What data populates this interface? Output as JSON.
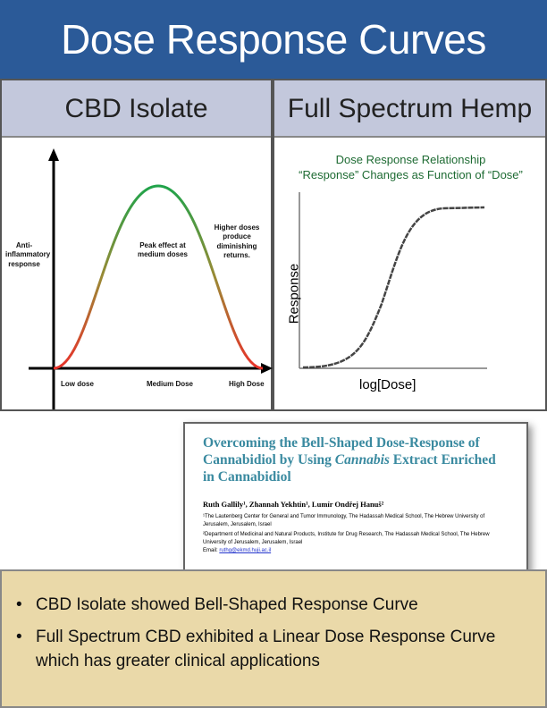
{
  "title": "Dose Response Curves",
  "left_panel": {
    "heading": "CBD Isolate",
    "chart_data": {
      "type": "line",
      "ylabel": "Anti-inflammatory response",
      "categories": [
        "Low dose",
        "Medium Dose",
        "High Dose"
      ],
      "annotations": [
        "Peak effect at medium doses",
        "Higher doses produce diminishing returns."
      ],
      "shape": "bell",
      "colors": {
        "low": "#e8322a",
        "peak": "#1fa34a"
      }
    }
  },
  "right_panel": {
    "heading": "Full Spectrum Hemp",
    "chart_data": {
      "type": "line",
      "title": "Dose Response Relationship",
      "subtitle": "“Response” Changes as Function of “Dose”",
      "xlabel": "log[Dose]",
      "ylabel": "Response",
      "shape": "sigmoid"
    }
  },
  "paper": {
    "title_parts": [
      "Overcoming the Bell-Shaped Dose-Response of Cannabidiol by Using ",
      "Cannabis",
      " Extract Enriched in Cannabidiol"
    ],
    "authors": "Ruth Gallily¹, Zhannah Yekhtin¹, Lumír Ondřej Hanuš²",
    "affiliation1": "¹The Lautenberg Center for General and Tumor Immunology, The Hadassah Medical School, The Hebrew University of Jerusalem, Jerusalem, Israel",
    "affiliation2": "²Department of Medicinal and Natural Products, Institute for Drug Research, The Hadassah Medical School, The Hebrew University of Jerusalem, Jerusalem, Israel",
    "email_label": "Email: ",
    "email": "ruthg@ekmd.huji.ac.il"
  },
  "bullets": [
    "CBD Isolate showed Bell-Shaped Response Curve",
    "Full Spectrum CBD exhibited a Linear Dose Response Curve which has greater clinical applications"
  ]
}
